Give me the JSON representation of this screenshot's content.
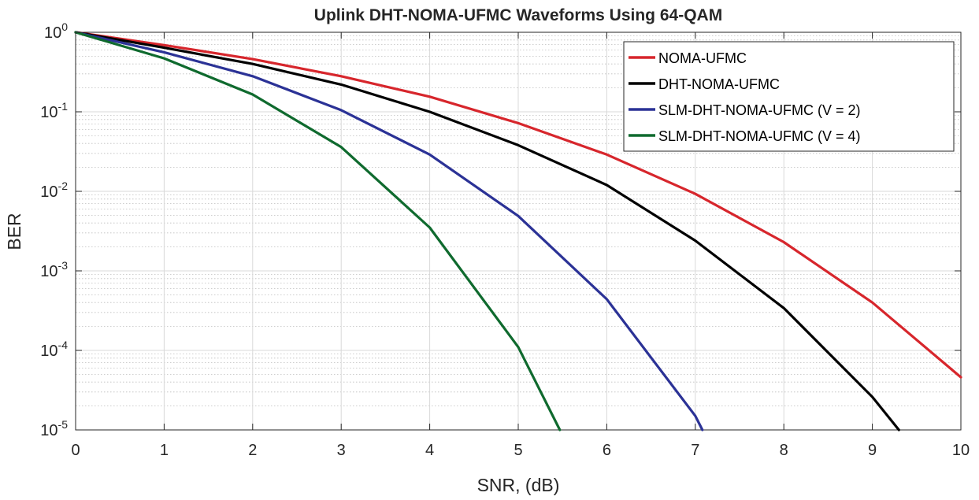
{
  "chart_data": {
    "type": "line",
    "title": "Uplink DHT-NOMA-UFMC Waveforms Using 64-QAM",
    "xlabel": "SNR, (dB)",
    "ylabel": "BER",
    "yscale": "log",
    "xlim": [
      0,
      10
    ],
    "ylim": [
      1e-05,
      1
    ],
    "grid": true,
    "legend_position": "top-right",
    "x_ticks": [
      "0",
      "1",
      "2",
      "3",
      "4",
      "5",
      "6",
      "7",
      "8",
      "9",
      "10"
    ],
    "y_ticks": [
      {
        "base": "10",
        "exp": "0",
        "value": 1
      },
      {
        "base": "10",
        "exp": "-1",
        "value": 0.1
      },
      {
        "base": "10",
        "exp": "-2",
        "value": 0.01
      },
      {
        "base": "10",
        "exp": "-3",
        "value": 0.001
      },
      {
        "base": "10",
        "exp": "-4",
        "value": 0.0001
      },
      {
        "base": "10",
        "exp": "-5",
        "value": 1e-05
      }
    ],
    "series": [
      {
        "name": "NOMA-UFMC",
        "color": "#d7262c",
        "x": [
          0,
          1,
          2,
          3,
          4,
          5,
          6,
          7,
          8,
          9,
          10
        ],
        "values": [
          1.0,
          0.69,
          0.46,
          0.28,
          0.155,
          0.072,
          0.029,
          0.0093,
          0.0023,
          0.0004,
          4.6e-05
        ]
      },
      {
        "name": "DHT-NOMA-UFMC",
        "color": "#000000",
        "x": [
          0,
          1,
          2,
          3,
          4,
          5,
          6,
          7,
          8,
          9,
          9.3
        ],
        "values": [
          1.0,
          0.64,
          0.4,
          0.22,
          0.1,
          0.038,
          0.012,
          0.0024,
          0.00034,
          2.6e-05,
          1e-05
        ]
      },
      {
        "name": "SLM-DHT-NOMA-UFMC (V = 2)",
        "color": "#2b3296",
        "x": [
          0,
          1,
          2,
          3,
          4,
          5,
          6,
          7,
          7.08
        ],
        "values": [
          1.0,
          0.56,
          0.28,
          0.105,
          0.029,
          0.0049,
          0.00044,
          1.5e-05,
          1e-05
        ]
      },
      {
        "name": "SLM-DHT-NOMA-UFMC (V = 4)",
        "color": "#0f6a2e",
        "x": [
          0,
          1,
          2,
          3,
          4,
          5,
          5.47
        ],
        "values": [
          1.0,
          0.47,
          0.165,
          0.036,
          0.0035,
          0.00011,
          1e-05
        ]
      }
    ]
  }
}
